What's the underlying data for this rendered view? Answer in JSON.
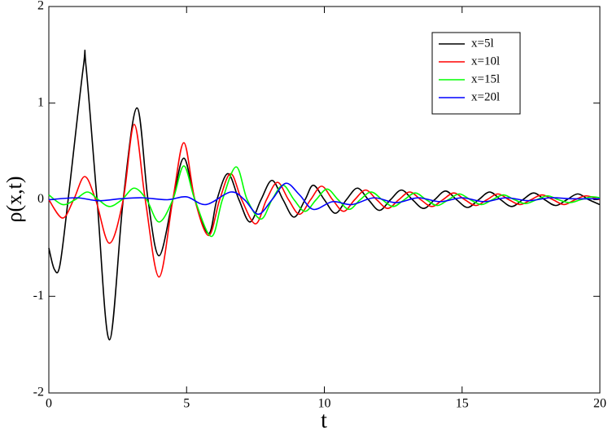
{
  "chart_data": {
    "type": "line",
    "x_label": "t",
    "y_label": "ρ(x,t)",
    "xlim": [
      0,
      20
    ],
    "ylim": [
      -2,
      2
    ],
    "xticks": [
      0,
      5,
      10,
      15,
      20
    ],
    "yticks": [
      -2,
      -1,
      0,
      1,
      2
    ],
    "legend": "upper right",
    "series": [
      {
        "name": "x=5l",
        "color": "#000000",
        "x": [
          0,
          0.2,
          0.4,
          0.7,
          1.25,
          1.35,
          1.75,
          2.2,
          2.7,
          3.2,
          3.6,
          4.0,
          4.5,
          4.9,
          5.3,
          5.8,
          6.1,
          6.5,
          6.9,
          7.3,
          7.7,
          8.1,
          8.5,
          8.9,
          9.3,
          9.6,
          10.0,
          10.4,
          10.8,
          11.2,
          11.6,
          12.0,
          12.4,
          12.8,
          13.2,
          13.6,
          14.0,
          14.4,
          14.8,
          15.2,
          15.6,
          16.0,
          16.4,
          16.8,
          17.2,
          17.6,
          18.0,
          18.4,
          18.8,
          19.2,
          19.6,
          20
        ],
        "values": [
          -0.5,
          -0.72,
          -0.68,
          0,
          1.37,
          1.38,
          0,
          -1.45,
          0,
          0.95,
          0,
          -0.58,
          0,
          0.43,
          0,
          -0.35,
          0,
          0.27,
          0,
          -0.23,
          0,
          0.2,
          0,
          -0.18,
          0,
          0.15,
          0,
          -0.14,
          0,
          0.12,
          0,
          -0.11,
          0,
          0.1,
          0,
          -0.09,
          0,
          0.09,
          0,
          -0.08,
          0,
          0.08,
          0,
          -0.07,
          0,
          0.07,
          0,
          -0.06,
          0,
          0.06,
          0,
          -0.05
        ]
      },
      {
        "name": "x=10l",
        "color": "#ff0000",
        "x": [
          0,
          0.5,
          0.9,
          1.3,
          1.7,
          2.2,
          2.7,
          3.1,
          3.5,
          4.0,
          4.5,
          4.9,
          5.3,
          5.8,
          6.2,
          6.6,
          7.0,
          7.5,
          7.9,
          8.3,
          8.7,
          9.1,
          9.5,
          9.9,
          10.3,
          10.7,
          11.1,
          11.5,
          11.9,
          12.3,
          12.7,
          13.1,
          13.5,
          13.9,
          14.3,
          14.7,
          15.1,
          15.5,
          15.9,
          16.3,
          16.7,
          17.1,
          17.5,
          17.9,
          18.3,
          18.7,
          19.1,
          19.5,
          20
        ],
        "values": [
          0,
          -0.19,
          0,
          0.24,
          0,
          -0.45,
          0,
          0.78,
          0,
          -0.8,
          0,
          0.59,
          0,
          -0.37,
          0,
          0.27,
          0,
          -0.25,
          0,
          0.18,
          0,
          -0.15,
          0,
          0.14,
          0,
          -0.12,
          0,
          0.1,
          0,
          -0.09,
          0,
          0.08,
          0,
          -0.07,
          0,
          0.07,
          0,
          -0.06,
          0,
          0.06,
          0,
          -0.05,
          0,
          0.05,
          0,
          -0.05,
          0,
          0.04,
          0
        ]
      },
      {
        "name": "x=15l",
        "color": "#00ff00",
        "x": [
          0,
          0.5,
          0.95,
          1.4,
          1.8,
          2.2,
          2.65,
          3.1,
          3.55,
          4.0,
          4.5,
          4.9,
          5.3,
          5.9,
          6.3,
          6.8,
          7.2,
          7.7,
          8.1,
          8.5,
          8.9,
          9.3,
          9.7,
          10.1,
          10.5,
          10.9,
          11.3,
          11.7,
          12.1,
          12.5,
          12.9,
          13.3,
          13.7,
          14.1,
          14.5,
          14.9,
          15.3,
          15.7,
          16.1,
          16.5,
          16.9,
          17.3,
          17.7,
          18.1,
          18.5,
          18.9,
          19.3,
          19.7,
          20
        ],
        "values": [
          0.05,
          -0.05,
          0,
          0.08,
          0,
          -0.07,
          0,
          0.12,
          0,
          -0.23,
          0,
          0.35,
          0,
          -0.38,
          0,
          0.34,
          0,
          -0.2,
          0,
          0.15,
          0,
          -0.12,
          0,
          0.11,
          0,
          -0.1,
          0,
          0.08,
          0,
          -0.07,
          0,
          0.07,
          0,
          -0.06,
          0,
          0.06,
          0,
          -0.05,
          0,
          0.05,
          0,
          -0.04,
          0,
          0.04,
          0,
          -0.03,
          0,
          0.03,
          0.02
        ]
      },
      {
        "name": "x=20l",
        "color": "#0000ff",
        "x": [
          0,
          1.0,
          1.8,
          2.6,
          3.4,
          4.3,
          5.0,
          5.7,
          6.6,
          7.1,
          7.6,
          8.1,
          8.6,
          9.1,
          9.6,
          10.3,
          11.0,
          11.8,
          12.6,
          13.4,
          14.2,
          15.0,
          15.8,
          16.6,
          17.4,
          18.2,
          19.0,
          20
        ],
        "values": [
          0,
          0.02,
          -0.01,
          0.01,
          0.02,
          0,
          0.03,
          -0.05,
          0.08,
          0,
          -0.15,
          0,
          0.17,
          0.05,
          -0.1,
          -0.02,
          -0.05,
          0.02,
          -0.03,
          0.02,
          -0.02,
          0.02,
          -0.02,
          0.02,
          -0.01,
          0.02,
          0.01,
          0.01
        ]
      }
    ]
  }
}
